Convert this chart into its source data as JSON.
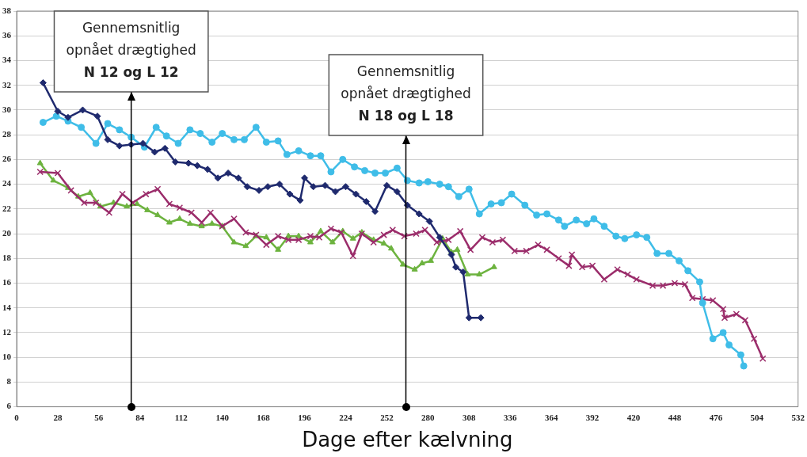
{
  "chart_data": {
    "type": "line",
    "xlabel": "Dage efter kælvning",
    "xlim": [
      0,
      532
    ],
    "xticks": [
      0,
      28,
      56,
      84,
      112,
      140,
      168,
      196,
      224,
      252,
      280,
      308,
      336,
      364,
      392,
      420,
      448,
      476,
      504,
      532
    ],
    "ylim": [
      6,
      38
    ],
    "yticks": [
      6,
      8,
      10,
      12,
      14,
      16,
      18,
      20,
      22,
      24,
      26,
      28,
      30,
      32,
      34,
      36,
      38
    ],
    "grid": "y",
    "legend": false,
    "line_style": "solid",
    "series": [
      {
        "color": "#1f2a6e",
        "marker": "diamond",
        "x": [
          18,
          28,
          35,
          45,
          55,
          62,
          70,
          78,
          86,
          94,
          101,
          108,
          117,
          123,
          130,
          137,
          144,
          151,
          157,
          165,
          171,
          179,
          186,
          193,
          196,
          202,
          210,
          217,
          224,
          231,
          238,
          244,
          252,
          259,
          266,
          274,
          281,
          288,
          296,
          299,
          304,
          308,
          316
        ],
        "values": [
          32.2,
          29.9,
          29.4,
          30.0,
          29.5,
          27.6,
          27.1,
          27.2,
          27.3,
          26.6,
          26.9,
          25.8,
          25.7,
          25.5,
          25.2,
          24.5,
          24.9,
          24.5,
          23.8,
          23.5,
          23.8,
          24.0,
          23.2,
          22.7,
          24.5,
          23.8,
          23.9,
          23.4,
          23.8,
          23.2,
          22.6,
          21.8,
          23.9,
          23.4,
          22.3,
          21.6,
          21.0,
          19.7,
          18.3,
          17.3,
          16.9,
          13.2,
          13.2
        ]
      },
      {
        "color": "#3fbde8",
        "marker": "circle",
        "x": [
          18,
          27,
          35,
          44,
          54,
          62,
          70,
          78,
          87,
          95,
          102,
          110,
          118,
          125,
          133,
          140,
          148,
          155,
          163,
          170,
          178,
          184,
          192,
          200,
          207,
          214,
          222,
          230,
          237,
          244,
          251,
          259,
          266,
          274,
          280,
          288,
          294,
          301,
          308,
          315,
          323,
          330,
          337,
          346,
          354,
          361,
          369,
          373,
          381,
          388,
          393,
          400,
          408,
          414,
          422,
          429,
          436,
          444,
          451,
          457,
          465,
          467,
          474,
          481,
          485,
          493,
          495
        ],
        "values": [
          29.0,
          29.5,
          29.1,
          28.6,
          27.3,
          28.9,
          28.4,
          27.8,
          27.0,
          28.6,
          27.9,
          27.3,
          28.4,
          28.1,
          27.4,
          28.1,
          27.6,
          27.6,
          28.6,
          27.4,
          27.5,
          26.4,
          26.7,
          26.3,
          26.3,
          25.0,
          26.0,
          25.4,
          25.1,
          24.9,
          24.9,
          25.3,
          24.3,
          24.1,
          24.2,
          24.0,
          23.8,
          23.0,
          23.6,
          21.6,
          22.4,
          22.5,
          23.2,
          22.3,
          21.5,
          21.6,
          21.1,
          20.6,
          21.1,
          20.8,
          21.2,
          20.6,
          19.8,
          19.6,
          19.9,
          19.7,
          18.4,
          18.4,
          17.8,
          17.0,
          16.1,
          14.4,
          11.5,
          12.0,
          11.0,
          10.2,
          9.3
        ]
      },
      {
        "color": "#9b2d6b",
        "marker": "cross",
        "x": [
          16,
          28,
          37,
          46,
          54,
          63,
          72,
          79,
          88,
          96,
          104,
          111,
          119,
          126,
          132,
          140,
          148,
          156,
          163,
          170,
          178,
          185,
          192,
          200,
          206,
          214,
          221,
          229,
          235,
          243,
          250,
          256,
          264,
          272,
          278,
          286,
          294,
          302,
          309,
          317,
          324,
          331,
          339,
          347,
          355,
          361,
          369,
          376,
          378,
          385,
          392,
          400,
          409,
          416,
          422,
          433,
          440,
          448,
          455,
          460,
          467,
          474,
          481,
          482,
          490,
          496,
          502,
          508
        ],
        "values": [
          25.0,
          24.9,
          23.5,
          22.5,
          22.5,
          21.7,
          23.2,
          22.5,
          23.2,
          23.6,
          22.4,
          22.1,
          21.7,
          20.9,
          21.7,
          20.6,
          21.2,
          20.1,
          19.9,
          19.1,
          19.8,
          19.5,
          19.5,
          19.8,
          19.7,
          20.4,
          20.1,
          18.2,
          20.0,
          19.3,
          19.9,
          20.3,
          19.8,
          20.0,
          20.3,
          19.3,
          19.5,
          20.2,
          18.7,
          19.7,
          19.3,
          19.5,
          18.6,
          18.6,
          19.1,
          18.7,
          18.0,
          17.4,
          18.3,
          17.3,
          17.4,
          16.3,
          17.1,
          16.7,
          16.3,
          15.8,
          15.8,
          16.0,
          15.9,
          14.8,
          14.7,
          14.6,
          13.9,
          13.2,
          13.5,
          13.0,
          11.5,
          9.9
        ]
      },
      {
        "color": "#6db33f",
        "marker": "triangle",
        "x": [
          16,
          25,
          35,
          42,
          50,
          57,
          66,
          75,
          82,
          89,
          96,
          104,
          111,
          118,
          126,
          133,
          140,
          148,
          156,
          163,
          170,
          178,
          185,
          192,
          200,
          207,
          215,
          222,
          229,
          235,
          243,
          250,
          255,
          263,
          271,
          276,
          282,
          290,
          296,
          300,
          307,
          315,
          325
        ],
        "values": [
          25.7,
          24.3,
          23.7,
          23.0,
          23.3,
          22.2,
          22.5,
          22.2,
          22.4,
          21.9,
          21.5,
          20.9,
          21.2,
          20.8,
          20.6,
          20.8,
          20.6,
          19.3,
          19.0,
          19.8,
          19.7,
          18.7,
          19.8,
          19.8,
          19.3,
          20.2,
          19.3,
          20.2,
          19.6,
          20.1,
          19.5,
          19.2,
          18.8,
          17.5,
          17.1,
          17.6,
          17.8,
          19.6,
          18.5,
          18.7,
          16.7,
          16.7,
          17.3
        ]
      }
    ],
    "ref_lines": [
      {
        "axis": "x",
        "value": 78,
        "label": "Gennemsnitlig opnået drægtighed N 12 og L 12"
      },
      {
        "axis": "x",
        "value": 265,
        "label": "Gennemsnitlig opnået drægtighed N 18 og L 18"
      }
    ]
  }
}
